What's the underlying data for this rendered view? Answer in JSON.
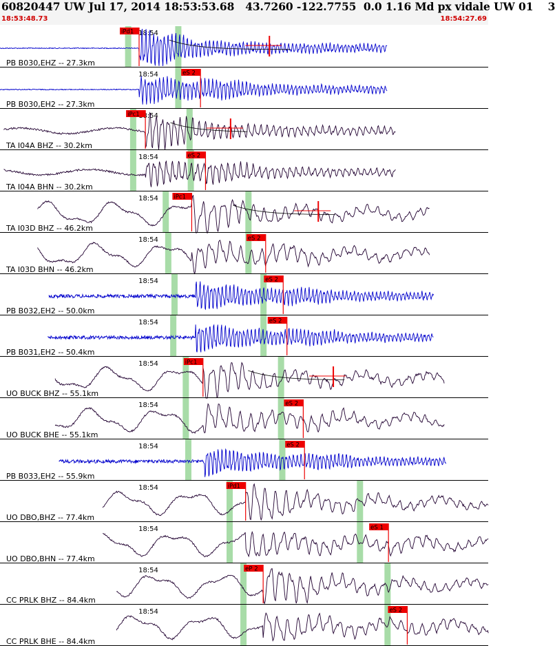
{
  "header": {
    "title": "60820447 UW Jul 17, 2014 18:53:53.68   43.7260 -122.7755  0.0 1.16 Md px vidale UW 01    3",
    "start_time": "18:53:48.73",
    "end_time": "18:54:27.69"
  },
  "colors": {
    "trace_blue": "#0000cc",
    "trace_dark": "#200030",
    "pick_red": "#ee0000",
    "window_green": "#a8dca8",
    "divider": "#000000"
  },
  "chart_data": {
    "type": "seismogram",
    "time_range": [
      "18:53:48.73",
      "18:54:27.69"
    ],
    "time_range_seconds": [
      0,
      38.96
    ],
    "minute_label": "18:54",
    "minute_tick_seconds": 11.27,
    "traces": [
      {
        "label": "PB B030,EHZ -- 27.3km",
        "color": "blue",
        "style": "hf",
        "start": 0,
        "end": 30.9,
        "onset": 11.1,
        "pick": "iPd1",
        "pick_time": 11.1,
        "windows": [
          10.2,
          14.2
        ],
        "coda": {
          "from": 13.5,
          "to": 23.2,
          "mark": 21.5
        }
      },
      {
        "label": "PB B030,EH2 -- 27.3km",
        "color": "blue",
        "style": "hf",
        "start": 0,
        "end": 30.9,
        "onset": 11.1,
        "pick": "eS 2",
        "pick_time": 16.0,
        "windows": [
          14.2
        ]
      },
      {
        "label": "TA I04A BHZ -- 30.2km",
        "color": "dark",
        "style": "mf",
        "start": 0.3,
        "end": 31.6,
        "onset": 11.6,
        "pick": "iPc1",
        "pick_time": 11.6,
        "windows": [
          10.6,
          15.1
        ],
        "coda": {
          "from": 13.6,
          "to": 19.8,
          "mark": 18.4
        }
      },
      {
        "label": "TA I04A BHN -- 30.2km",
        "color": "dark",
        "style": "mf",
        "start": 0.3,
        "end": 31.6,
        "onset": 11.6,
        "pick": "eS 2",
        "pick_time": 16.4,
        "windows": [
          10.6,
          15.2
        ]
      },
      {
        "label": "TA I03D BHZ -- 46.2km",
        "color": "dark",
        "style": "lf",
        "start": 3.0,
        "end": 34.3,
        "onset": 15.3,
        "pick": "iPc1",
        "pick_time": 15.3,
        "windows": [
          13.2,
          19.8
        ],
        "coda": {
          "from": 18.6,
          "to": 26.8,
          "mark": 25.4
        }
      },
      {
        "label": "TA I03D BHN -- 46.2km",
        "color": "dark",
        "style": "lf",
        "start": 3.0,
        "end": 34.3,
        "onset": 15.3,
        "pick": "eS 2",
        "pick_time": 21.2,
        "windows": [
          13.4,
          19.8
        ]
      },
      {
        "label": "PB B032,EH2 -- 50.0km",
        "color": "blue",
        "style": "hf",
        "start": 3.9,
        "end": 34.6,
        "onset": 15.6,
        "pick": "eS 2",
        "pick_time": 22.6,
        "windows": [
          13.9,
          21.0
        ]
      },
      {
        "label": "PB B031,EH2 -- 50.4km",
        "color": "blue",
        "style": "hf",
        "start": 3.8,
        "end": 34.6,
        "onset": 15.6,
        "pick": "eS 2",
        "pick_time": 22.9,
        "windows": [
          13.8,
          21.0
        ]
      },
      {
        "label": "UO BUCK BHZ -- 55.1km",
        "color": "dark",
        "style": "lf",
        "start": 4.4,
        "end": 35.5,
        "onset": 16.2,
        "pick": "iPc1",
        "pick_time": 16.2,
        "windows": [
          14.8,
          22.4
        ],
        "coda": {
          "from": 19.8,
          "to": 27.5,
          "mark": 26.6
        }
      },
      {
        "label": "UO BUCK BHE -- 55.1km",
        "color": "dark",
        "style": "lf",
        "start": 4.4,
        "end": 35.5,
        "onset": 16.2,
        "pick": "eS 2",
        "pick_time": 24.2,
        "windows": [
          14.8,
          22.4
        ]
      },
      {
        "label": "PB B033,EH2 -- 55.9km",
        "color": "blue",
        "style": "hf",
        "start": 4.7,
        "end": 35.6,
        "onset": 16.3,
        "pick": "eS 2",
        "pick_time": 24.3,
        "windows": [
          15.0,
          22.5
        ]
      },
      {
        "label": "UO DBO,BHZ -- 77.4km",
        "color": "dark",
        "style": "lf",
        "start": 8.2,
        "end": 39.0,
        "onset": 19.6,
        "pick": "iPd1",
        "pick_time": 19.6,
        "windows": [
          18.3,
          28.7
        ]
      },
      {
        "label": "UO DBO,BHN -- 77.4km",
        "color": "dark",
        "style": "lf",
        "start": 8.2,
        "end": 39.0,
        "onset": 19.6,
        "pick": "eS 1",
        "pick_time": 31.0,
        "windows": [
          18.3,
          28.7
        ]
      },
      {
        "label": "CC PRLK BHZ -- 84.4km",
        "color": "dark",
        "style": "lf",
        "start": 9.3,
        "end": 39.0,
        "onset": 21.0,
        "pick": "eP 2",
        "pick_time": 21.0,
        "windows": [
          19.4,
          30.9
        ]
      },
      {
        "label": "CC PRLK BHE -- 84.4km",
        "color": "dark",
        "style": "lf",
        "start": 9.3,
        "end": 39.0,
        "onset": 21.0,
        "pick": "eS 2",
        "pick_time": 32.5,
        "windows": [
          19.4,
          30.9
        ]
      }
    ]
  }
}
